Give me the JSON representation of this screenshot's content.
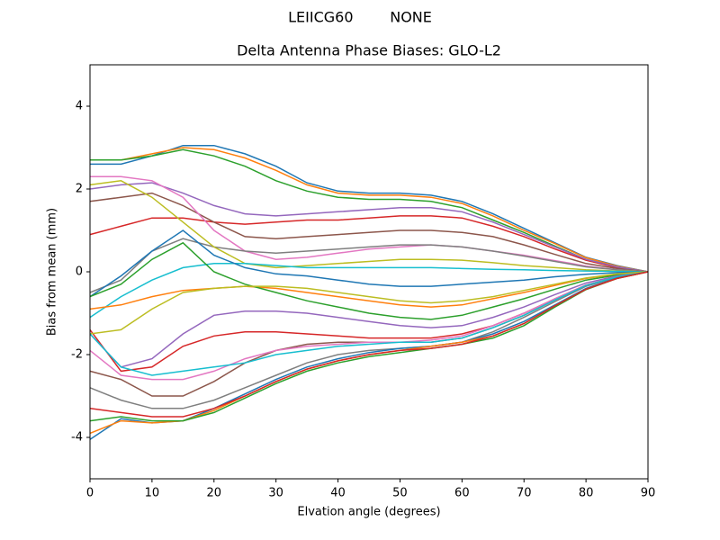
{
  "chart_data": {
    "type": "line",
    "suptitle": "LEIICG60        NONE",
    "title": "Delta Antenna Phase Biases: GLO-L2",
    "x_label": "Elvation angle (degrees)",
    "y_label": "Bias from mean (mm)",
    "x": [
      0,
      5,
      10,
      15,
      20,
      25,
      30,
      35,
      40,
      45,
      50,
      55,
      60,
      65,
      70,
      75,
      80,
      85,
      90
    ],
    "xlim": [
      0,
      90
    ],
    "xticks": [
      0,
      10,
      20,
      30,
      40,
      50,
      60,
      70,
      80,
      90
    ],
    "ylim": [
      -5,
      5
    ],
    "yticks": [
      -4,
      -2,
      0,
      2,
      4
    ],
    "series": [
      {
        "color": "#1f77b4",
        "values": [
          2.6,
          2.6,
          2.8,
          3.05,
          3.05,
          2.85,
          2.55,
          2.15,
          1.95,
          1.9,
          1.9,
          1.85,
          1.7,
          1.4,
          1.05,
          0.7,
          0.35,
          0.15,
          0
        ]
      },
      {
        "color": "#ff7f0e",
        "values": [
          2.7,
          2.7,
          2.85,
          3.0,
          2.95,
          2.75,
          2.45,
          2.1,
          1.9,
          1.85,
          1.85,
          1.8,
          1.65,
          1.35,
          1.0,
          0.68,
          0.34,
          0.14,
          0
        ]
      },
      {
        "color": "#2ca02c",
        "values": [
          2.7,
          2.7,
          2.8,
          2.95,
          2.8,
          2.55,
          2.2,
          1.95,
          1.8,
          1.75,
          1.75,
          1.7,
          1.55,
          1.25,
          0.95,
          0.62,
          0.3,
          0.12,
          0
        ]
      },
      {
        "color": "#d62728",
        "values": [
          0.9,
          1.1,
          1.3,
          1.3,
          1.2,
          1.15,
          1.2,
          1.25,
          1.25,
          1.3,
          1.35,
          1.35,
          1.3,
          1.1,
          0.85,
          0.55,
          0.28,
          0.1,
          0
        ]
      },
      {
        "color": "#9467bd",
        "values": [
          2.0,
          2.1,
          2.15,
          1.9,
          1.6,
          1.4,
          1.35,
          1.4,
          1.45,
          1.5,
          1.55,
          1.55,
          1.45,
          1.2,
          0.9,
          0.6,
          0.3,
          0.12,
          0
        ]
      },
      {
        "color": "#8c564b",
        "values": [
          1.7,
          1.8,
          1.9,
          1.6,
          1.2,
          0.85,
          0.8,
          0.85,
          0.9,
          0.95,
          1.0,
          1.0,
          0.95,
          0.85,
          0.65,
          0.42,
          0.2,
          0.08,
          0
        ]
      },
      {
        "color": "#e377c2",
        "values": [
          2.3,
          2.3,
          2.2,
          1.8,
          1.0,
          0.5,
          0.3,
          0.35,
          0.45,
          0.55,
          0.6,
          0.65,
          0.6,
          0.5,
          0.4,
          0.27,
          0.14,
          0.05,
          0
        ]
      },
      {
        "color": "#7f7f7f",
        "values": [
          -0.5,
          -0.2,
          0.5,
          0.8,
          0.6,
          0.5,
          0.45,
          0.5,
          0.55,
          0.6,
          0.65,
          0.65,
          0.6,
          0.5,
          0.38,
          0.25,
          0.12,
          0.05,
          0
        ]
      },
      {
        "color": "#bcbd22",
        "values": [
          2.1,
          2.2,
          1.8,
          1.2,
          0.6,
          0.2,
          0.1,
          0.15,
          0.2,
          0.25,
          0.3,
          0.3,
          0.28,
          0.22,
          0.15,
          0.1,
          0.05,
          0.02,
          0
        ]
      },
      {
        "color": "#17becf",
        "values": [
          -1.1,
          -0.6,
          -0.2,
          0.1,
          0.2,
          0.2,
          0.15,
          0.1,
          0.1,
          0.1,
          0.1,
          0.1,
          0.08,
          0.06,
          0.05,
          0.03,
          0.02,
          0.01,
          0
        ]
      },
      {
        "color": "#1f77b4",
        "values": [
          -0.6,
          -0.1,
          0.5,
          1.0,
          0.4,
          0.1,
          -0.05,
          -0.1,
          -0.2,
          -0.3,
          -0.35,
          -0.35,
          -0.3,
          -0.25,
          -0.2,
          -0.12,
          -0.06,
          -0.02,
          0
        ]
      },
      {
        "color": "#ff7f0e",
        "values": [
          -0.9,
          -0.8,
          -0.6,
          -0.45,
          -0.4,
          -0.35,
          -0.4,
          -0.5,
          -0.6,
          -0.7,
          -0.8,
          -0.85,
          -0.8,
          -0.65,
          -0.5,
          -0.33,
          -0.16,
          -0.06,
          0
        ]
      },
      {
        "color": "#2ca02c",
        "values": [
          -0.6,
          -0.3,
          0.3,
          0.7,
          0.0,
          -0.3,
          -0.5,
          -0.7,
          -0.85,
          -1.0,
          -1.1,
          -1.15,
          -1.05,
          -0.85,
          -0.65,
          -0.42,
          -0.2,
          -0.08,
          0
        ]
      },
      {
        "color": "#d62728",
        "values": [
          -1.4,
          -2.4,
          -2.3,
          -1.8,
          -1.55,
          -1.45,
          -1.45,
          -1.5,
          -1.55,
          -1.6,
          -1.6,
          -1.6,
          -1.5,
          -1.3,
          -1.0,
          -0.65,
          -0.32,
          -0.12,
          0
        ]
      },
      {
        "color": "#9467bd",
        "values": [
          -1.5,
          -2.3,
          -2.1,
          -1.5,
          -1.05,
          -0.95,
          -0.95,
          -1.0,
          -1.1,
          -1.2,
          -1.3,
          -1.35,
          -1.3,
          -1.1,
          -0.85,
          -0.55,
          -0.27,
          -0.1,
          0
        ]
      },
      {
        "color": "#8c564b",
        "values": [
          -2.4,
          -2.6,
          -3.0,
          -3.0,
          -2.65,
          -2.2,
          -1.9,
          -1.75,
          -1.7,
          -1.7,
          -1.7,
          -1.7,
          -1.6,
          -1.35,
          -1.05,
          -0.68,
          -0.33,
          -0.12,
          0
        ]
      },
      {
        "color": "#e377c2",
        "values": [
          -1.9,
          -2.5,
          -2.6,
          -2.6,
          -2.4,
          -2.1,
          -1.9,
          -1.8,
          -1.75,
          -1.7,
          -1.7,
          -1.65,
          -1.55,
          -1.3,
          -1.0,
          -0.65,
          -0.32,
          -0.12,
          0
        ]
      },
      {
        "color": "#7f7f7f",
        "values": [
          -2.8,
          -3.1,
          -3.3,
          -3.3,
          -3.1,
          -2.8,
          -2.5,
          -2.2,
          -2.0,
          -1.9,
          -1.85,
          -1.8,
          -1.7,
          -1.45,
          -1.1,
          -0.72,
          -0.35,
          -0.13,
          0
        ]
      },
      {
        "color": "#bcbd22",
        "values": [
          -1.5,
          -1.4,
          -0.9,
          -0.5,
          -0.4,
          -0.35,
          -0.35,
          -0.4,
          -0.5,
          -0.6,
          -0.7,
          -0.75,
          -0.7,
          -0.6,
          -0.45,
          -0.3,
          -0.15,
          -0.05,
          0
        ]
      },
      {
        "color": "#17becf",
        "values": [
          -1.5,
          -2.3,
          -2.5,
          -2.4,
          -2.3,
          -2.2,
          -2.0,
          -1.9,
          -1.8,
          -1.75,
          -1.7,
          -1.7,
          -1.6,
          -1.35,
          -1.05,
          -0.68,
          -0.33,
          -0.12,
          0
        ]
      },
      {
        "color": "#1f77b4",
        "values": [
          -4.05,
          -3.55,
          -3.65,
          -3.6,
          -3.3,
          -2.95,
          -2.6,
          -2.3,
          -2.1,
          -1.95,
          -1.85,
          -1.8,
          -1.7,
          -1.5,
          -1.2,
          -0.8,
          -0.4,
          -0.15,
          0
        ]
      },
      {
        "color": "#ff7f0e",
        "values": [
          -3.9,
          -3.6,
          -3.65,
          -3.6,
          -3.35,
          -3.0,
          -2.65,
          -2.35,
          -2.15,
          -2.0,
          -1.9,
          -1.8,
          -1.7,
          -1.55,
          -1.25,
          -0.82,
          -0.42,
          -0.16,
          0
        ]
      },
      {
        "color": "#2ca02c",
        "values": [
          -3.6,
          -3.5,
          -3.6,
          -3.6,
          -3.4,
          -3.05,
          -2.7,
          -2.4,
          -2.2,
          -2.05,
          -1.95,
          -1.85,
          -1.75,
          -1.6,
          -1.3,
          -0.85,
          -0.43,
          -0.16,
          0
        ]
      },
      {
        "color": "#d62728",
        "values": [
          -3.3,
          -3.4,
          -3.5,
          -3.5,
          -3.3,
          -3.0,
          -2.65,
          -2.35,
          -2.15,
          -2.0,
          -1.9,
          -1.85,
          -1.75,
          -1.55,
          -1.25,
          -0.82,
          -0.42,
          -0.16,
          0
        ]
      }
    ]
  }
}
